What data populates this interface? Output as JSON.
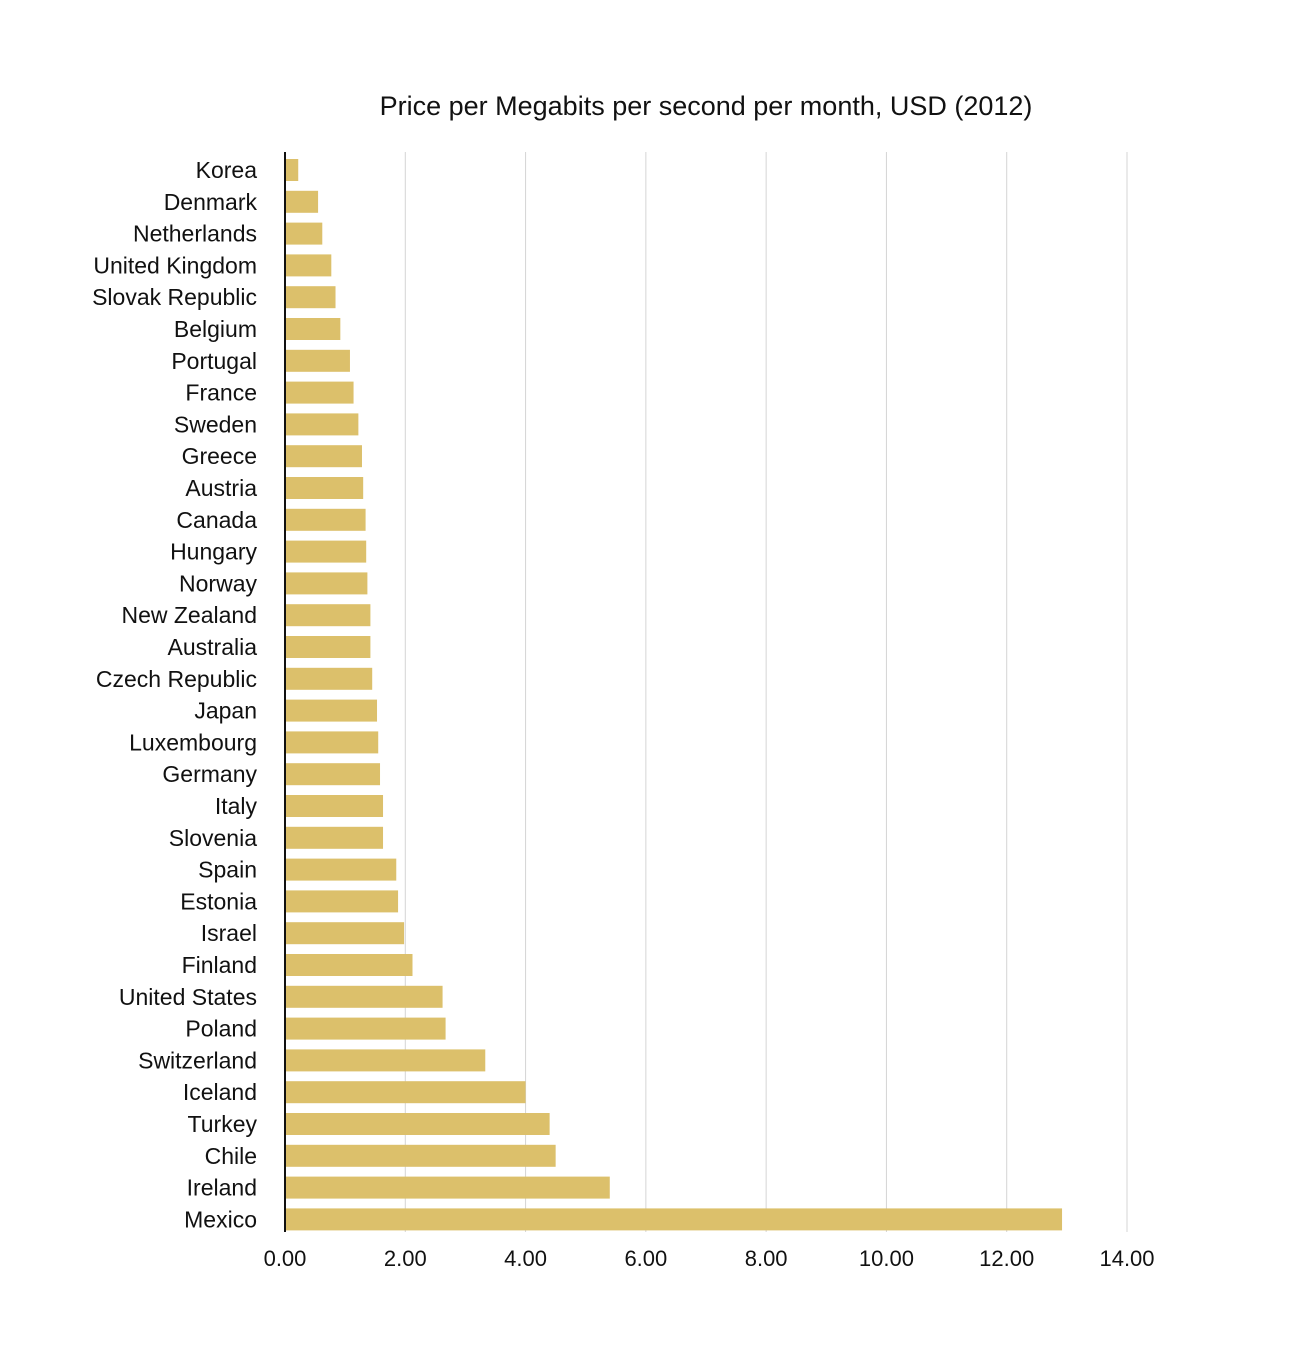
{
  "chart_data": {
    "type": "bar",
    "orientation": "horizontal",
    "title": "Price per Megabits per second per month, USD (2012)",
    "xlabel": "",
    "ylabel": "",
    "xlim": [
      0,
      14
    ],
    "grid": true,
    "legend": "none",
    "bar_color": "#dcc06b",
    "grid_color": "#d4d4d4",
    "axis_color": "#111111",
    "ticks": [
      0,
      2,
      4,
      6,
      8,
      10,
      12,
      14
    ],
    "tick_labels": [
      "0.00",
      "2.00",
      "4.00",
      "6.00",
      "8.00",
      "10.00",
      "12.00",
      "14.00"
    ],
    "categories": [
      "Korea",
      "Denmark",
      "Netherlands",
      "United Kingdom",
      "Slovak Republic",
      "Belgium",
      "Portugal",
      "France",
      "Sweden",
      "Greece",
      "Austria",
      "Canada",
      "Hungary",
      "Norway",
      "New Zealand",
      "Australia",
      "Czech Republic",
      "Japan",
      "Luxembourg",
      "Germany",
      "Italy",
      "Slovenia",
      "Spain",
      "Estonia",
      "Israel",
      "Finland",
      "United States",
      "Poland",
      "Switzerland",
      "Iceland",
      "Turkey",
      "Chile",
      "Ireland",
      "Mexico"
    ],
    "values": [
      0.22,
      0.55,
      0.62,
      0.77,
      0.84,
      0.92,
      1.08,
      1.14,
      1.22,
      1.28,
      1.3,
      1.34,
      1.35,
      1.37,
      1.42,
      1.42,
      1.45,
      1.53,
      1.55,
      1.58,
      1.63,
      1.63,
      1.85,
      1.88,
      1.98,
      2.12,
      2.62,
      2.67,
      3.33,
      4.0,
      4.4,
      4.5,
      5.4,
      12.92
    ]
  }
}
